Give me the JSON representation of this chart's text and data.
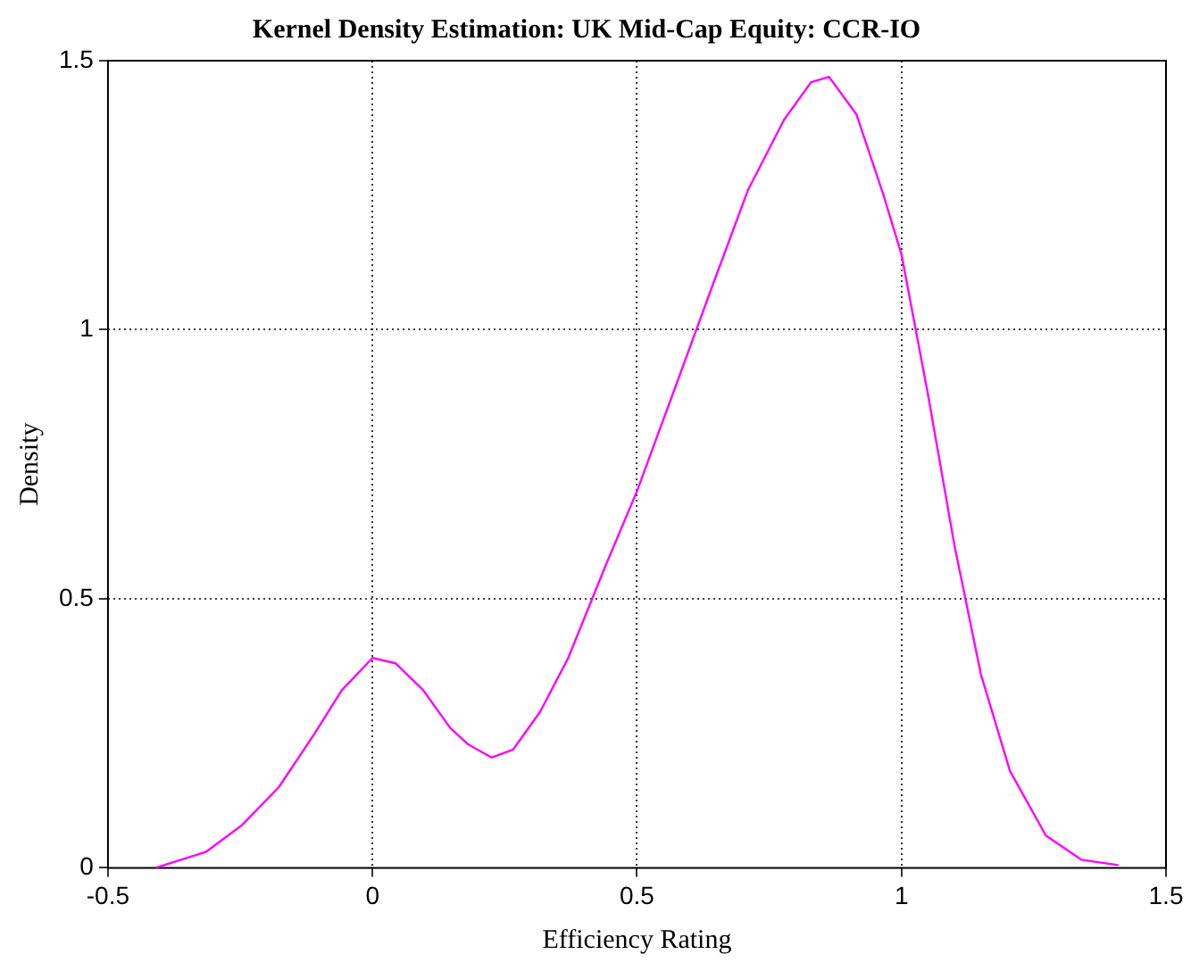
{
  "chart_data": {
    "type": "line",
    "title": "Kernel Density Estimation: UK Mid-Cap Equity: CCR-IO",
    "xlabel": "Efficiency Rating",
    "ylabel": "Density",
    "x": [
      -0.41,
      -0.314,
      -0.246,
      -0.177,
      -0.109,
      -0.058,
      0,
      0.044,
      0.096,
      0.147,
      0.18,
      0.225,
      0.266,
      0.317,
      0.37,
      0.44,
      0.5,
      0.575,
      0.642,
      0.71,
      0.778,
      0.829,
      0.863,
      0.915,
      0.966,
      1.0,
      1.05,
      1.1,
      1.15,
      1.205,
      1.273,
      1.34,
      1.41
    ],
    "series": [
      {
        "color": "#ff00ff",
        "values": [
          0,
          0.03,
          0.08,
          0.15,
          0.25,
          0.33,
          0.39,
          0.38,
          0.33,
          0.26,
          0.23,
          0.205,
          0.22,
          0.29,
          0.39,
          0.56,
          0.7,
          0.9,
          1.08,
          1.26,
          1.39,
          1.46,
          1.47,
          1.4,
          1.25,
          1.14,
          0.88,
          0.6,
          0.36,
          0.18,
          0.06,
          0.015,
          0.005
        ]
      }
    ],
    "xlim": [
      -0.5,
      1.5
    ],
    "xticks": [
      -0.5,
      0,
      0.5,
      1,
      1.5
    ],
    "ylim": [
      0,
      1.5
    ],
    "yticks": [
      0,
      0.5,
      1,
      1.5
    ],
    "grid": true,
    "marker": "none",
    "line_style": "solid",
    "legend": false
  }
}
